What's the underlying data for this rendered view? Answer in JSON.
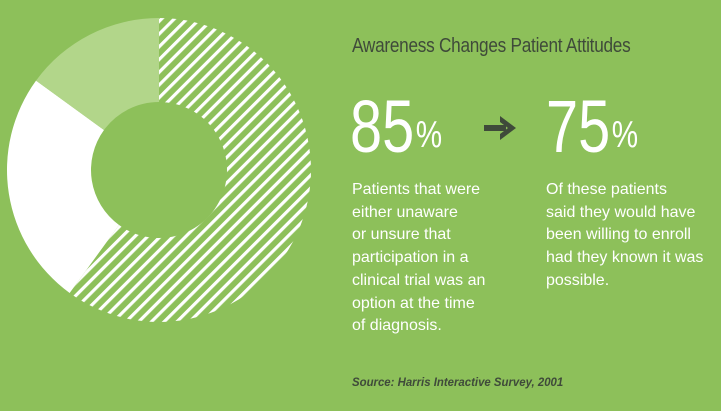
{
  "title": "Awareness Changes Patient Attitudes",
  "stats": [
    {
      "number": "85",
      "unit": "%",
      "description": "Patients that were\neither unaware\nor unsure that\nparticipation in a\nclinical trial was an\noption at the time\nof diagnosis."
    },
    {
      "number": "75",
      "unit": "%",
      "description": "Of these patients\nsaid they would have\nbeen willing to enroll\nhad they known it was\npossible."
    }
  ],
  "arrow_icon": "arrow-right-icon",
  "source": "Source: Harris Interactive Survey, 2001",
  "colors": {
    "background": "#8dc05a",
    "title": "#3f4a3a",
    "white": "#ffffff",
    "light_segment": "#b2d68a",
    "arrow": "#3f4a3a"
  },
  "chart_data": {
    "type": "pie",
    "style": "donut",
    "values": [
      60,
      25,
      15
    ],
    "segment_colors": [
      "hatched-white",
      "#ffffff",
      "#b2d68a"
    ]
  }
}
